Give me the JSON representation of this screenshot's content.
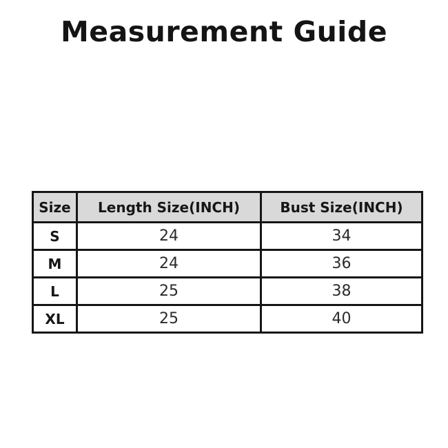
{
  "page": {
    "title": "Measurement Guide"
  },
  "table": {
    "headers": [
      "Size",
      "Length Size(INCH)",
      "Bust Size(INCH)"
    ],
    "rows": [
      {
        "size": "S",
        "length": "24",
        "bust": "34"
      },
      {
        "size": "M",
        "length": "24",
        "bust": "36"
      },
      {
        "size": "L",
        "length": "25",
        "bust": "38"
      },
      {
        "size": "XL",
        "length": "25",
        "bust": "40"
      }
    ]
  },
  "colors": {
    "page_bg": "#ffffff",
    "header_bg": "#d9d9d9",
    "border": "#151515",
    "title_text": "#141414",
    "cell_text": "#2b2b2b"
  }
}
